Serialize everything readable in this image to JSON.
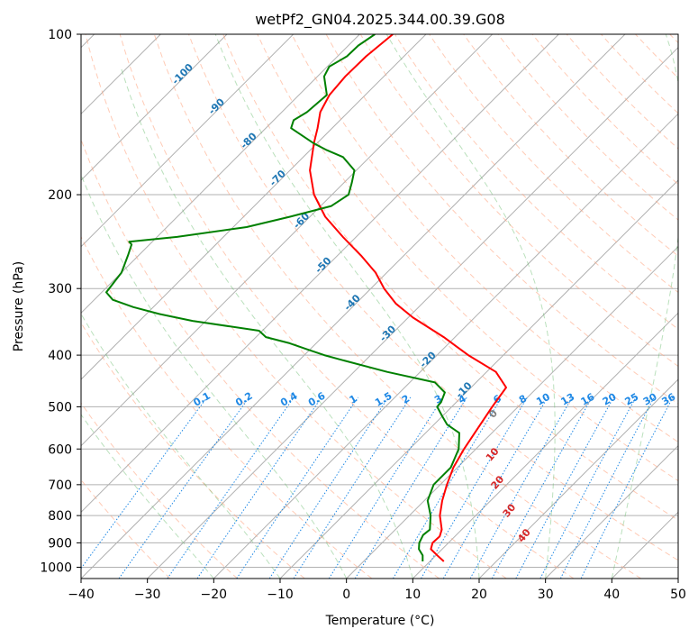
{
  "chart_data": {
    "type": "skew-t",
    "title": "wetPf2_GN04.2025.344.00.39.G08",
    "xlabel": "Temperature (°C)",
    "ylabel": "Pressure (hPa)",
    "xlim": [
      -40,
      50
    ],
    "ylim": [
      1050,
      100
    ],
    "x_ticks": [
      -40,
      -30,
      -20,
      -10,
      0,
      10,
      20,
      30,
      40,
      50
    ],
    "x_tick_labels": [
      "−40",
      "−30",
      "−20",
      "−10",
      "0",
      "10",
      "20",
      "30",
      "40",
      "50"
    ],
    "y_ticks": [
      100,
      200,
      300,
      400,
      500,
      600,
      700,
      800,
      900,
      1000
    ],
    "y_tick_labels": [
      "100",
      "200",
      "300",
      "400",
      "500",
      "600",
      "700",
      "800",
      "900",
      "1000"
    ],
    "isotherms_c": [
      -160,
      -150,
      -140,
      -130,
      -120,
      -110,
      -100,
      -90,
      -80,
      -70,
      -60,
      -50,
      -40,
      -30,
      -20,
      -10,
      0,
      10,
      20,
      30,
      40,
      50
    ],
    "dry_adiabat_label_values": [
      "-100",
      "-90",
      "-80",
      "-70",
      "-60",
      "-50",
      "-40",
      "-30",
      "-20",
      "-10"
    ],
    "moist_adiabat_label_values": [
      "0",
      "10",
      "20",
      "30",
      "40"
    ],
    "mixing_ratio_labels": [
      "0.1",
      "0.2",
      "0.4",
      "0.6",
      "1",
      "1.5",
      "2",
      "3",
      "4",
      "6",
      "8",
      "10",
      "13",
      "16",
      "20",
      "25",
      "30",
      "36"
    ],
    "series": [
      {
        "name": "Temperature",
        "color": "#ff0000",
        "pressure_hpa": [
          975,
          950,
          925,
          900,
          875,
          850,
          800,
          750,
          700,
          650,
          600,
          550,
          500,
          460,
          430,
          400,
          370,
          340,
          320,
          300,
          280,
          260,
          240,
          220,
          200,
          180,
          160,
          150,
          140,
          130,
          120,
          110,
          100
        ],
        "temperature_c": [
          12.1,
          10.2,
          8.3,
          7.6,
          7.7,
          7.0,
          4.6,
          2.7,
          1.0,
          -0.6,
          -1.8,
          -2.8,
          -3.9,
          -4.7,
          -8.6,
          -15.3,
          -21.7,
          -29.3,
          -34.0,
          -38.0,
          -41.7,
          -46.5,
          -52.0,
          -57.7,
          -62.7,
          -67.0,
          -70.5,
          -72.2,
          -74.2,
          -75.4,
          -75.8,
          -75.7,
          -75.0
        ]
      },
      {
        "name": "Dewpoint",
        "color": "#008000",
        "pressure_hpa": [
          975,
          950,
          925,
          900,
          870,
          850,
          800,
          750,
          700,
          650,
          600,
          560,
          540,
          520,
          500,
          490,
          470,
          450,
          430,
          410,
          400,
          390,
          380,
          370,
          360,
          345,
          335,
          325,
          315,
          305,
          280,
          260,
          248,
          245,
          240,
          230,
          220,
          210,
          200,
          190,
          180,
          170,
          165,
          160,
          150,
          145,
          140,
          130,
          120,
          115,
          110,
          105,
          100
        ],
        "temperature_c": [
          8.9,
          8.0,
          6.5,
          5.6,
          5.0,
          5.2,
          3.2,
          0.5,
          -1.0,
          -1.0,
          -2.6,
          -4.9,
          -8.0,
          -10.1,
          -12.2,
          -12.3,
          -13.2,
          -16.2,
          -25.0,
          -33.0,
          -37.0,
          -40.5,
          -44.0,
          -48.5,
          -50.5,
          -62.0,
          -68.0,
          -73.0,
          -77.2,
          -79.3,
          -80.0,
          -81.6,
          -82.7,
          -83.5,
          -77.0,
          -68.0,
          -63.0,
          -58.4,
          -57.5,
          -58.8,
          -60.3,
          -64.0,
          -67.5,
          -70.6,
          -76.2,
          -77.0,
          -76.2,
          -75.8,
          -79.0,
          -79.7,
          -78.6,
          -78.5,
          -77.7
        ]
      }
    ]
  }
}
